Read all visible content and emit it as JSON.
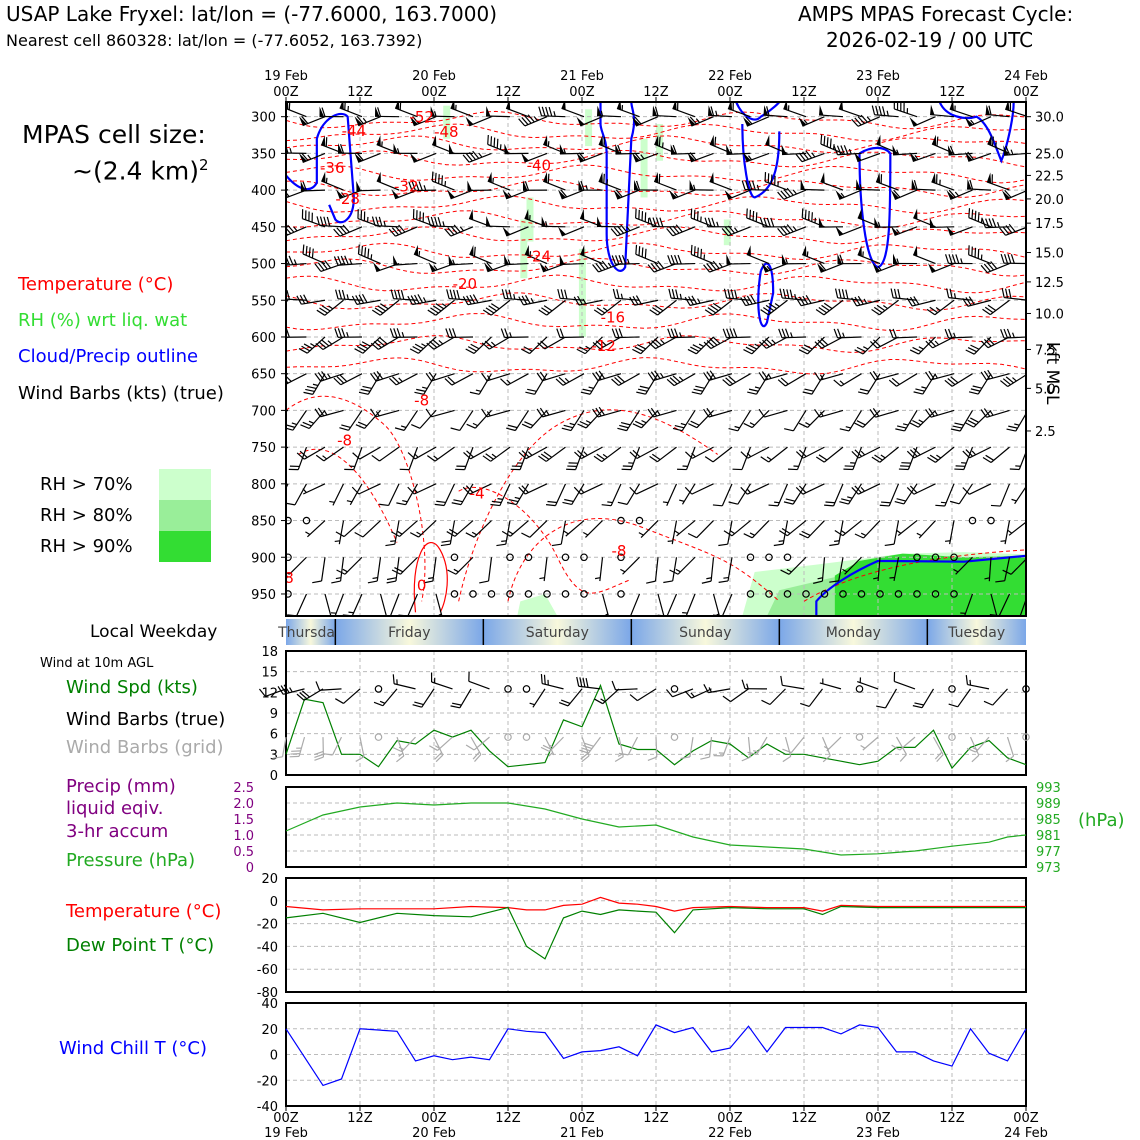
{
  "header": {
    "title_left": "USAP Lake Fryxel: lat/lon = (-77.6000, 163.7000)",
    "subtitle_left": "Nearest cell 860328: lat/lon = (-77.6052, 163.7392)",
    "title_right_1": "AMPS MPAS Forecast Cycle:",
    "title_right_2": "2026-02-19 / 00 UTC"
  },
  "legend": {
    "cell_size_1": "MPAS cell size:",
    "cell_size_2": "~(2.4 km)",
    "cell_size_sup": "2",
    "temperature": "Temperature (°C)",
    "rh": "RH (%) wrt liq. wat",
    "cloud": "Cloud/Precip outline",
    "wind": "Wind Barbs (kts) (true)",
    "rh70": "RH > 70%",
    "rh80": "RH > 80%",
    "rh90": "RH > 90%"
  },
  "colors": {
    "temp": "#ff0000",
    "rh70": "#ccffcc",
    "rh80": "#99ee99",
    "rh90": "#33dd33",
    "cloud": "#0000ff",
    "wind": "#000000",
    "wind_grid": "#aaaaaa",
    "pressure": "#22aa22",
    "precip": "#800080",
    "dewpoint": "#008000",
    "windspd": "#008000",
    "windchill": "#0000ff",
    "weekday_blue": "#7ba7e8",
    "weekday_cream": "#f8f8dc"
  },
  "time_axis": {
    "ticks": [
      "00Z",
      "12Z",
      "00Z",
      "12Z",
      "00Z",
      "12Z",
      "00Z",
      "12Z",
      "00Z",
      "12Z",
      "00Z"
    ],
    "dates": [
      "19 Feb",
      "20 Feb",
      "21 Feb",
      "22 Feb",
      "23 Feb",
      "24 Feb"
    ]
  },
  "weekday": {
    "label": "Local Weekday",
    "days": [
      "Thursday",
      "Friday",
      "Saturday",
      "Sunday",
      "Monday",
      "Tuesday"
    ]
  },
  "panels": {
    "wind10_title": "Wind at 10m AGL",
    "wind_spd": "Wind Spd (kts)",
    "wind_barbs_true": "Wind Barbs (true)",
    "wind_barbs_grid": "Wind Barbs (grid)",
    "precip_1": "Precip (mm)",
    "precip_2": "liquid eqiv.",
    "precip_3": "3-hr accum",
    "pressure": "Pressure (hPa)",
    "pressure_unit": "(hPa)",
    "temp": "Temperature (°C)",
    "dewpoint": "Dew Point T (°C)",
    "windchill": "Wind Chill T (°C)",
    "kft_label": "kft MSL"
  },
  "chart_data": [
    {
      "type": "heatmap",
      "name": "vertical time section",
      "x_range_hours": [
        0,
        120
      ],
      "y_pressure_ticks": [
        300,
        350,
        400,
        450,
        500,
        550,
        600,
        650,
        700,
        750,
        800,
        850,
        900,
        950
      ],
      "y_kft_ticks": [
        {
          "p": 300,
          "label": "30.0"
        },
        {
          "p": 350,
          "label": "25.0"
        },
        {
          "p": 380,
          "label": "22.5"
        },
        {
          "p": 412,
          "label": "20.0"
        },
        {
          "p": 445,
          "label": "17.5"
        },
        {
          "p": 485,
          "label": "15.0"
        },
        {
          "p": 525,
          "label": "12.5"
        },
        {
          "p": 568,
          "label": "10.0"
        },
        {
          "p": 617,
          "label": "7.5"
        },
        {
          "p": 670,
          "label": "5.0"
        },
        {
          "p": 728,
          "label": "2.5"
        }
      ],
      "temp_labels": [
        {
          "t": 22,
          "p": 307,
          "v": "-52"
        },
        {
          "t": 11,
          "p": 326,
          "v": "-44"
        },
        {
          "t": 26,
          "p": 328,
          "v": "-48"
        },
        {
          "t": 7.5,
          "p": 377,
          "v": "-36"
        },
        {
          "t": 41,
          "p": 373,
          "v": "-40"
        },
        {
          "t": 10,
          "p": 419,
          "v": "-28"
        },
        {
          "t": 19.5,
          "p": 402,
          "v": "-32"
        },
        {
          "t": 29,
          "p": 535,
          "v": "-20"
        },
        {
          "t": 41,
          "p": 497,
          "v": "-24"
        },
        {
          "t": 53,
          "p": 580,
          "v": "-16"
        },
        {
          "t": 51.5,
          "p": 619,
          "v": "-12"
        },
        {
          "t": 22,
          "p": 693,
          "v": "-8"
        },
        {
          "t": 9.5,
          "p": 748,
          "v": "-8"
        },
        {
          "t": 31,
          "p": 820,
          "v": "-4"
        },
        {
          "t": 54,
          "p": 898,
          "v": "-8"
        },
        {
          "t": 22,
          "p": 945,
          "v": "0"
        },
        {
          "t": 0.5,
          "p": 935,
          "v": "8"
        }
      ],
      "winds_kts": [
        {
          "p": 300,
          "spd": 55,
          "dir": 270
        },
        {
          "p": 350,
          "spd": 55,
          "dir": 270
        },
        {
          "p": 400,
          "spd": 55,
          "dir": 270
        },
        {
          "p": 450,
          "spd": 45,
          "dir": 270
        },
        {
          "p": 500,
          "spd": 50,
          "dir": 270
        },
        {
          "p": 550,
          "spd": 35,
          "dir": 255
        },
        {
          "p": 600,
          "spd": 30,
          "dir": 245
        },
        {
          "p": 650,
          "spd": 25,
          "dir": 235
        },
        {
          "p": 700,
          "spd": 20,
          "dir": 230
        },
        {
          "p": 750,
          "spd": 20,
          "dir": 225
        },
        {
          "p": 800,
          "spd": 15,
          "dir": 220
        },
        {
          "p": 850,
          "spd": 10,
          "dir": 215
        },
        {
          "p": 900,
          "spd": 10,
          "dir": 200
        },
        {
          "p": 950,
          "spd": 5,
          "dir": 190
        }
      ]
    },
    {
      "type": "line",
      "name": "wind speed 10m",
      "ylim": [
        0,
        18
      ],
      "yticks": [
        0,
        3,
        6,
        9,
        12,
        15,
        18
      ],
      "x_hours": [
        0,
        3,
        6,
        9,
        12,
        15,
        18,
        21,
        24,
        27,
        30,
        33,
        36,
        39,
        42,
        45,
        48,
        51,
        54,
        57,
        60,
        63,
        66,
        69,
        72,
        75,
        78,
        81,
        84,
        87,
        90,
        93,
        96,
        99,
        102,
        105,
        108,
        111,
        114,
        117,
        120
      ],
      "values": [
        3.0,
        11.0,
        10.5,
        3.0,
        3.0,
        1.2,
        5.0,
        4.5,
        6.5,
        5.5,
        6.5,
        3.5,
        1.2,
        1.5,
        1.8,
        8.0,
        7.0,
        13.0,
        4.5,
        3.7,
        3.7,
        1.5,
        3.5,
        5.0,
        4.5,
        2.5,
        4.5,
        3.0,
        3.0,
        2.5,
        2.0,
        1.5,
        2.0,
        4.0,
        4.0,
        6.5,
        1.0,
        4.0,
        5.0,
        2.5,
        1.5
      ]
    },
    {
      "type": "line",
      "name": "pressure",
      "ylim": [
        973,
        993
      ],
      "yticks_right": [
        973,
        977,
        981,
        985,
        989,
        993
      ],
      "yticks_left": [
        "0",
        "0.5",
        "1.0",
        "1.5",
        "2.0",
        "2.5"
      ],
      "x_hours": [
        0,
        6,
        12,
        18,
        24,
        30,
        36,
        42,
        48,
        54,
        60,
        66,
        72,
        78,
        84,
        90,
        96,
        102,
        108,
        114,
        117,
        120
      ],
      "values": [
        982,
        986,
        988,
        989,
        988.5,
        989,
        989,
        987.5,
        985,
        983,
        983.5,
        980.5,
        978.5,
        978,
        977.5,
        976,
        976.3,
        977,
        978.2,
        979.2,
        980.5,
        981
      ]
    },
    {
      "type": "line",
      "name": "temperature and dew point",
      "ylim": [
        -80,
        20
      ],
      "yticks": [
        20,
        0,
        -20,
        -40,
        -60,
        -80
      ],
      "x_hours": [
        0,
        6,
        12,
        18,
        24,
        30,
        36,
        39,
        42,
        45,
        48,
        51,
        54,
        57,
        60,
        63,
        66,
        72,
        78,
        84,
        87,
        90,
        96,
        102,
        108,
        114,
        120
      ],
      "series": [
        {
          "name": "Temperature (°C)",
          "values": [
            -5,
            -8,
            -7,
            -7,
            -7,
            -5,
            -6,
            -8,
            -8,
            -4,
            -3,
            3,
            -2,
            -3,
            -5,
            -9,
            -6,
            -5,
            -6,
            -6,
            -9,
            -4,
            -5,
            -5,
            -5,
            -5,
            -5
          ]
        },
        {
          "name": "Dew Point T (°C)",
          "values": [
            -15,
            -11,
            -19,
            -11,
            -13,
            -14,
            -6,
            -40,
            -51,
            -15,
            -9,
            -12,
            -8,
            -9,
            -10,
            -28,
            -8,
            -6,
            -7,
            -7,
            -12,
            -5,
            -6,
            -6,
            -6,
            -6,
            -6
          ]
        }
      ]
    },
    {
      "type": "line",
      "name": "wind chill",
      "ylim": [
        -40,
        40
      ],
      "yticks": [
        40,
        20,
        0,
        -20,
        -40
      ],
      "x_hours": [
        0,
        6,
        9,
        12,
        18,
        21,
        24,
        27,
        30,
        33,
        36,
        39,
        42,
        45,
        48,
        51,
        54,
        57,
        60,
        63,
        66,
        69,
        72,
        75,
        78,
        81,
        84,
        87,
        90,
        93,
        96,
        99,
        102,
        105,
        108,
        111,
        114,
        117,
        120
      ],
      "values": [
        20,
        -24,
        -19,
        20,
        18,
        -5,
        -1,
        -4,
        -2,
        -4,
        20,
        18,
        17,
        -3,
        2,
        3,
        6,
        -1,
        23,
        17,
        21,
        2,
        5,
        22,
        2,
        21,
        21,
        21,
        16,
        23,
        21,
        2,
        2,
        -5,
        -9,
        20,
        1,
        -5,
        20
      ]
    }
  ]
}
